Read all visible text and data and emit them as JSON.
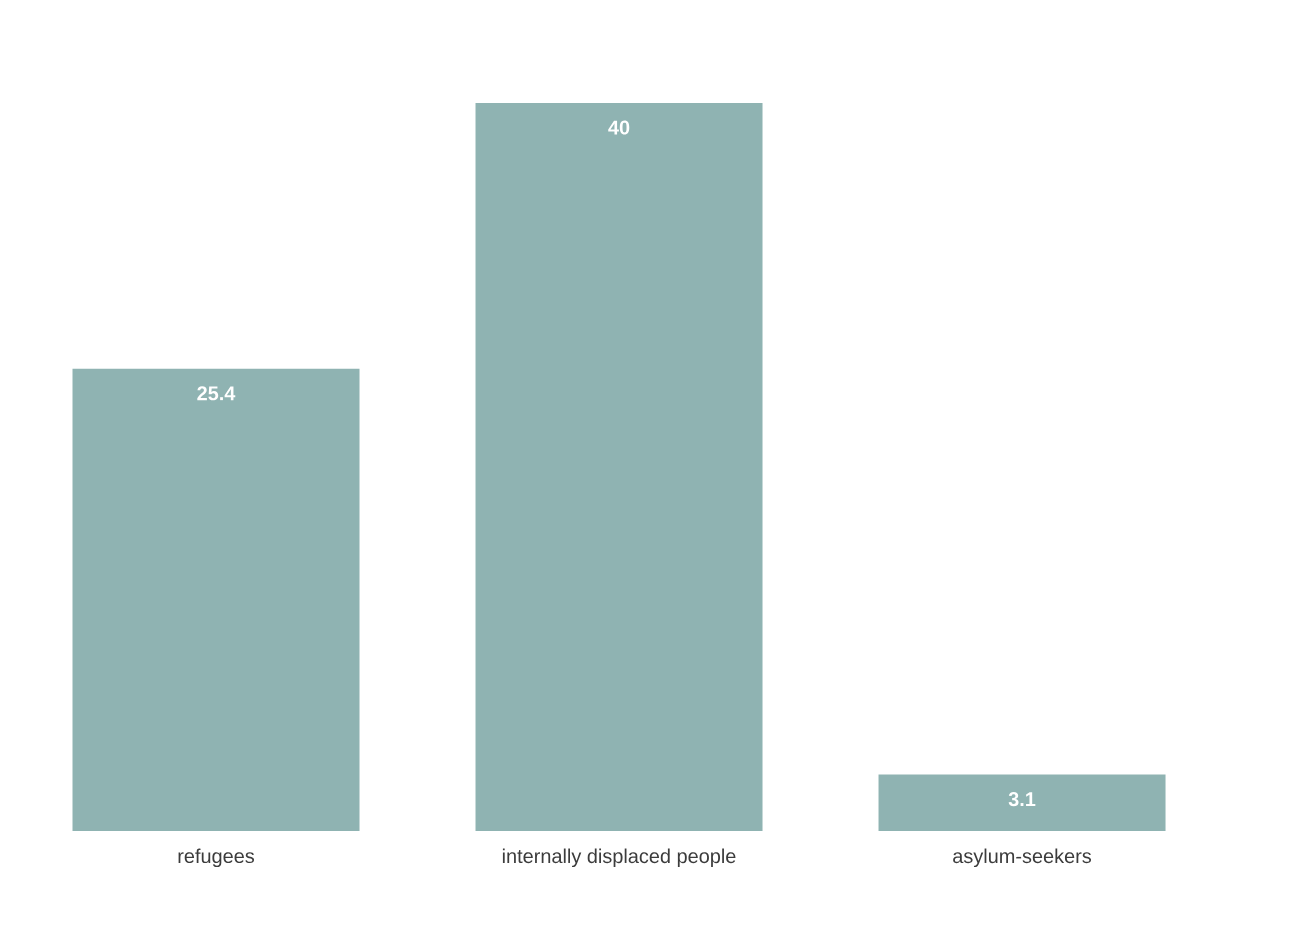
{
  "chart_data": {
    "type": "bar",
    "categories": [
      "refugees",
      "internally displaced people",
      "asylum-seekers"
    ],
    "values": [
      25.4,
      40,
      3.1
    ],
    "color": "#8fb3b2",
    "data_labels": true
  }
}
